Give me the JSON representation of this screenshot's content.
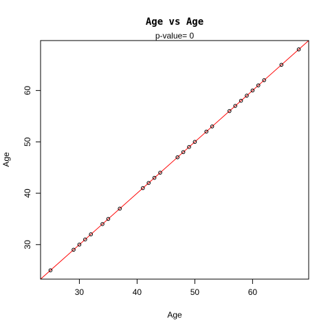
{
  "chart_data": {
    "type": "scatter",
    "title": "Age  vs  Age",
    "subtitle": "p-value= 0",
    "xlabel": "Age",
    "ylabel": "Age",
    "xlim": [
      23.28,
      69.72
    ],
    "ylim": [
      23.28,
      69.72
    ],
    "xticks": [
      30,
      40,
      50,
      60
    ],
    "yticks": [
      30,
      40,
      50,
      60
    ],
    "grid": false,
    "legend": "none",
    "fit_line": {
      "intercept": 0,
      "slope": 1,
      "color": "#ff0000"
    },
    "point_color": "#000000",
    "points": [
      {
        "x": 25,
        "y": 25
      },
      {
        "x": 29,
        "y": 29
      },
      {
        "x": 30,
        "y": 30
      },
      {
        "x": 31,
        "y": 31
      },
      {
        "x": 32,
        "y": 32
      },
      {
        "x": 34,
        "y": 34
      },
      {
        "x": 35,
        "y": 35
      },
      {
        "x": 37,
        "y": 37
      },
      {
        "x": 41,
        "y": 41
      },
      {
        "x": 42,
        "y": 42
      },
      {
        "x": 43,
        "y": 43
      },
      {
        "x": 44,
        "y": 44
      },
      {
        "x": 47,
        "y": 47
      },
      {
        "x": 48,
        "y": 48
      },
      {
        "x": 49,
        "y": 49
      },
      {
        "x": 50,
        "y": 50
      },
      {
        "x": 52,
        "y": 52
      },
      {
        "x": 53,
        "y": 53
      },
      {
        "x": 56,
        "y": 56
      },
      {
        "x": 57,
        "y": 57
      },
      {
        "x": 58,
        "y": 58
      },
      {
        "x": 59,
        "y": 59
      },
      {
        "x": 60,
        "y": 60
      },
      {
        "x": 61,
        "y": 61
      },
      {
        "x": 62,
        "y": 62
      },
      {
        "x": 65,
        "y": 65
      },
      {
        "x": 68,
        "y": 68
      }
    ]
  }
}
